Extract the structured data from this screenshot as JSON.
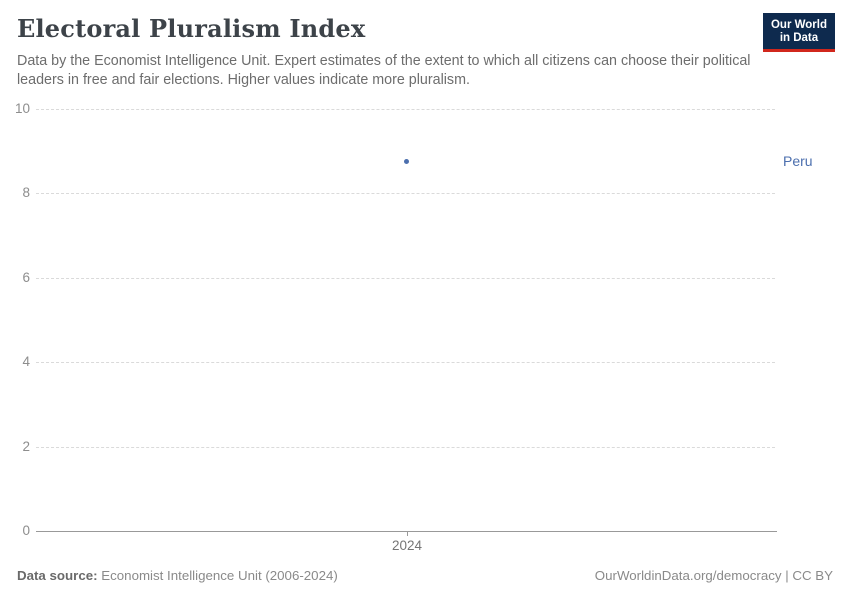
{
  "header": {
    "title": "Electoral Pluralism Index",
    "subtitle": "Data by the Economist Intelligence Unit. Expert estimates of the extent to which all citizens can choose their political leaders in free and fair elections. Higher values indicate more pluralism.",
    "logo": {
      "line1": "Our World",
      "line2": "in Data",
      "bg_color": "#0e2a4e",
      "accent_color": "#d1271c"
    }
  },
  "chart_data": {
    "type": "scatter",
    "title": "Electoral Pluralism Index",
    "xlabel": "",
    "ylabel": "",
    "ylim": [
      0,
      10
    ],
    "y_ticks": [
      0,
      2,
      4,
      6,
      8,
      10
    ],
    "xlim": [
      2023.5,
      2024.5
    ],
    "x_ticks": [
      2024
    ],
    "grid": "horizontal-dashed",
    "legend_position": "right-of-point",
    "series": [
      {
        "name": "Peru",
        "color": "#4c6fae",
        "points": [
          {
            "x": 2024,
            "y": 8.75
          }
        ]
      }
    ]
  },
  "footer": {
    "source_label": "Data source:",
    "source_value": "Economist Intelligence Unit (2006-2024)",
    "credit": "OurWorldinData.org/democracy | CC BY"
  }
}
